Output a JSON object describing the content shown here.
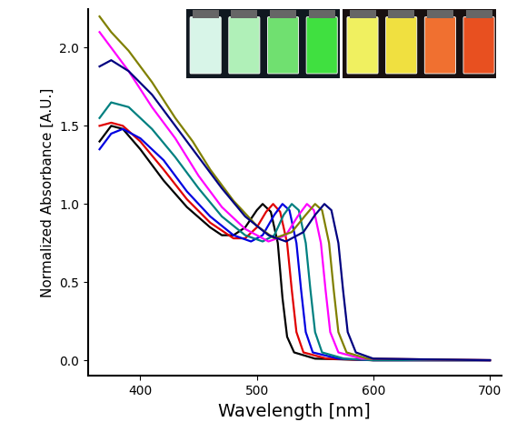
{
  "chart_data": {
    "type": "line",
    "x_label": "Wavelength [nm]",
    "y_label": "Normalized Absorbance [A.U.]",
    "xlim": [
      355,
      710
    ],
    "xticks": [
      400,
      500,
      600,
      700
    ],
    "ylim": [
      -0.1,
      2.25
    ],
    "yticks": [
      {
        "value": 0.0,
        "label": "0.0"
      },
      0.5,
      {
        "value": 1.0,
        "label": "1.0"
      },
      1.5,
      {
        "value": 2.0,
        "label": "2.0"
      }
    ],
    "grid": false,
    "series": [
      {
        "color": "#000000",
        "x": [
          365,
          375,
          385,
          400,
          420,
          440,
          460,
          470,
          480,
          490,
          500,
          505,
          512,
          518,
          522,
          526,
          532,
          550,
          600,
          700
        ],
        "values": [
          1.4,
          1.5,
          1.48,
          1.35,
          1.15,
          0.98,
          0.85,
          0.8,
          0.8,
          0.85,
          0.96,
          1.0,
          0.95,
          0.75,
          0.4,
          0.15,
          0.05,
          0.01,
          0.0,
          0.0
        ]
      },
      {
        "color": "#e00000",
        "x": [
          365,
          375,
          385,
          400,
          420,
          440,
          460,
          480,
          490,
          500,
          508,
          514,
          520,
          526,
          530,
          534,
          540,
          560,
          600,
          700
        ],
        "values": [
          1.5,
          1.52,
          1.5,
          1.4,
          1.22,
          1.03,
          0.88,
          0.78,
          0.78,
          0.85,
          0.95,
          1.0,
          0.95,
          0.75,
          0.45,
          0.18,
          0.05,
          0.01,
          0.0,
          0.0
        ]
      },
      {
        "color": "#0000e0",
        "x": [
          365,
          375,
          385,
          400,
          420,
          440,
          460,
          480,
          495,
          505,
          515,
          522,
          528,
          534,
          538,
          542,
          548,
          570,
          600,
          700
        ],
        "values": [
          1.35,
          1.45,
          1.48,
          1.42,
          1.28,
          1.08,
          0.92,
          0.8,
          0.76,
          0.8,
          0.93,
          1.0,
          0.96,
          0.75,
          0.45,
          0.18,
          0.05,
          0.01,
          0.0,
          0.0
        ]
      },
      {
        "color": "#008080",
        "x": [
          365,
          375,
          390,
          410,
          430,
          450,
          470,
          490,
          505,
          515,
          523,
          530,
          536,
          542,
          546,
          550,
          556,
          575,
          600,
          700
        ],
        "values": [
          1.55,
          1.65,
          1.62,
          1.48,
          1.3,
          1.1,
          0.92,
          0.8,
          0.76,
          0.8,
          0.93,
          1.0,
          0.96,
          0.75,
          0.45,
          0.18,
          0.05,
          0.01,
          0.0,
          0.0
        ]
      },
      {
        "color": "#ff00ff",
        "x": [
          365,
          375,
          390,
          410,
          430,
          450,
          470,
          490,
          510,
          525,
          535,
          543,
          549,
          555,
          559,
          563,
          570,
          590,
          700
        ],
        "values": [
          2.1,
          2.0,
          1.85,
          1.62,
          1.42,
          1.18,
          0.98,
          0.84,
          0.76,
          0.8,
          0.92,
          1.0,
          0.96,
          0.75,
          0.45,
          0.18,
          0.05,
          0.01,
          0.0
        ]
      },
      {
        "color": "#808000",
        "x": [
          365,
          375,
          390,
          410,
          430,
          445,
          460,
          480,
          500,
          515,
          530,
          542,
          550,
          556,
          562,
          566,
          570,
          577,
          595,
          700
        ],
        "values": [
          2.2,
          2.1,
          1.98,
          1.78,
          1.55,
          1.4,
          1.22,
          1.02,
          0.86,
          0.78,
          0.82,
          0.93,
          1.0,
          0.96,
          0.75,
          0.45,
          0.18,
          0.05,
          0.01,
          0.0
        ]
      },
      {
        "color": "#000080",
        "x": [
          365,
          375,
          390,
          410,
          430,
          450,
          470,
          490,
          510,
          525,
          540,
          550,
          558,
          564,
          570,
          574,
          578,
          585,
          600,
          700
        ],
        "values": [
          1.88,
          1.92,
          1.85,
          1.7,
          1.5,
          1.3,
          1.1,
          0.92,
          0.8,
          0.76,
          0.82,
          0.93,
          1.0,
          0.96,
          0.75,
          0.45,
          0.18,
          0.05,
          0.01,
          0.0
        ]
      }
    ]
  }
}
